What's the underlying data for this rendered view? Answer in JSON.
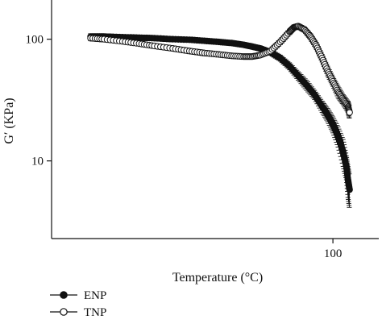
{
  "chart_data": {
    "type": "scatter",
    "xlabel": "Temperature (°C)",
    "ylabel": "G′ (KPa)",
    "x_scale": "log",
    "y_scale": "log",
    "xlim": [
      20,
      130
    ],
    "ylim": [
      2.3,
      210
    ],
    "x_ticks": [
      {
        "value": 100,
        "label": "100"
      }
    ],
    "y_ticks": [
      {
        "value": 100,
        "label": "100"
      },
      {
        "value": 10,
        "label": "10"
      }
    ],
    "grid": false,
    "legend_position": "bottom-left",
    "series": [
      {
        "name": "ENP",
        "marker": "filled-circle",
        "x": [
          25,
          27,
          30,
          33,
          36,
          40,
          44,
          48,
          52,
          56,
          60,
          63,
          66,
          70,
          74,
          78,
          82,
          86,
          90,
          94,
          97,
          100,
          103,
          106,
          108,
          109,
          110
        ],
        "y": [
          105,
          105,
          104,
          103,
          102,
          100,
          99,
          97,
          95,
          93,
          90,
          87,
          84,
          78,
          70,
          60,
          50,
          42,
          35,
          28,
          24,
          20,
          16,
          12,
          9,
          7,
          5.8
        ],
        "err": [
          6,
          6,
          5,
          5,
          5,
          5,
          4,
          4,
          4,
          4,
          4,
          4,
          4,
          4,
          4,
          4,
          4,
          4,
          3,
          3,
          3,
          3,
          3,
          3,
          2,
          2,
          1.8
        ]
      },
      {
        "name": "TNP",
        "marker": "open-circle",
        "x": [
          25,
          27,
          30,
          33,
          36,
          40,
          44,
          48,
          52,
          56,
          60,
          63,
          66,
          70,
          74,
          78,
          80,
          82,
          85,
          88,
          91,
          94,
          97,
          100,
          103,
          106,
          109,
          110
        ],
        "y": [
          102,
          100,
          96,
          92,
          88,
          84,
          80,
          77,
          75,
          73,
          72,
          72,
          74,
          80,
          95,
          115,
          125,
          128,
          120,
          105,
          88,
          70,
          55,
          45,
          37,
          32,
          28,
          25
        ],
        "err": [
          5,
          5,
          4,
          4,
          4,
          4,
          4,
          4,
          3,
          3,
          3,
          3,
          3,
          4,
          5,
          6,
          6,
          6,
          6,
          6,
          6,
          5,
          5,
          4,
          4,
          3,
          3,
          3
        ]
      }
    ]
  }
}
